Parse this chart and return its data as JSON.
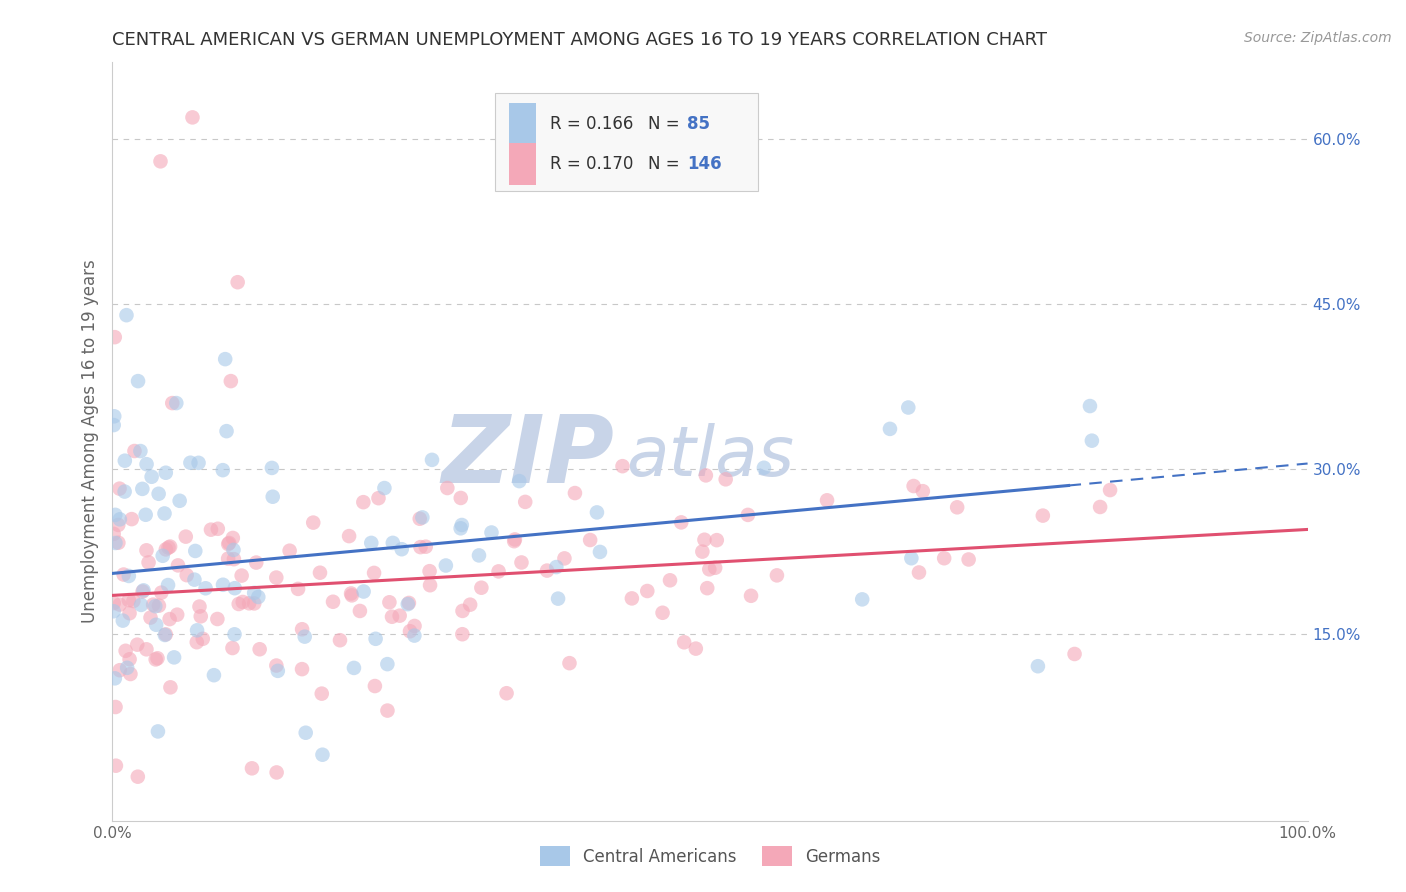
{
  "title": "CENTRAL AMERICAN VS GERMAN UNEMPLOYMENT AMONG AGES 16 TO 19 YEARS CORRELATION CHART",
  "source": "Source: ZipAtlas.com",
  "ylabel": "Unemployment Among Ages 16 to 19 years",
  "xlim": [
    0.0,
    1.0
  ],
  "ylim": [
    -0.02,
    0.67
  ],
  "yticks": [
    0.15,
    0.3,
    0.45,
    0.6
  ],
  "ytick_labels": [
    "15.0%",
    "30.0%",
    "45.0%",
    "60.0%"
  ],
  "xticks": [
    0.0,
    1.0
  ],
  "xtick_labels": [
    "0.0%",
    "100.0%"
  ],
  "blue_color": "#a8c8e8",
  "pink_color": "#f4a8b8",
  "blue_line_color": "#4472c4",
  "pink_line_color": "#e05070",
  "blue_N": 85,
  "pink_N": 146,
  "blue_R": 0.166,
  "pink_R": 0.17,
  "background_color": "#ffffff",
  "grid_color": "#c8c8c8",
  "title_fontsize": 13,
  "axis_label_fontsize": 12,
  "tick_fontsize": 11,
  "legend_fontsize": 13,
  "watermark_zip_color": "#c8d4e8",
  "watermark_atlas_color": "#c8d4e8"
}
